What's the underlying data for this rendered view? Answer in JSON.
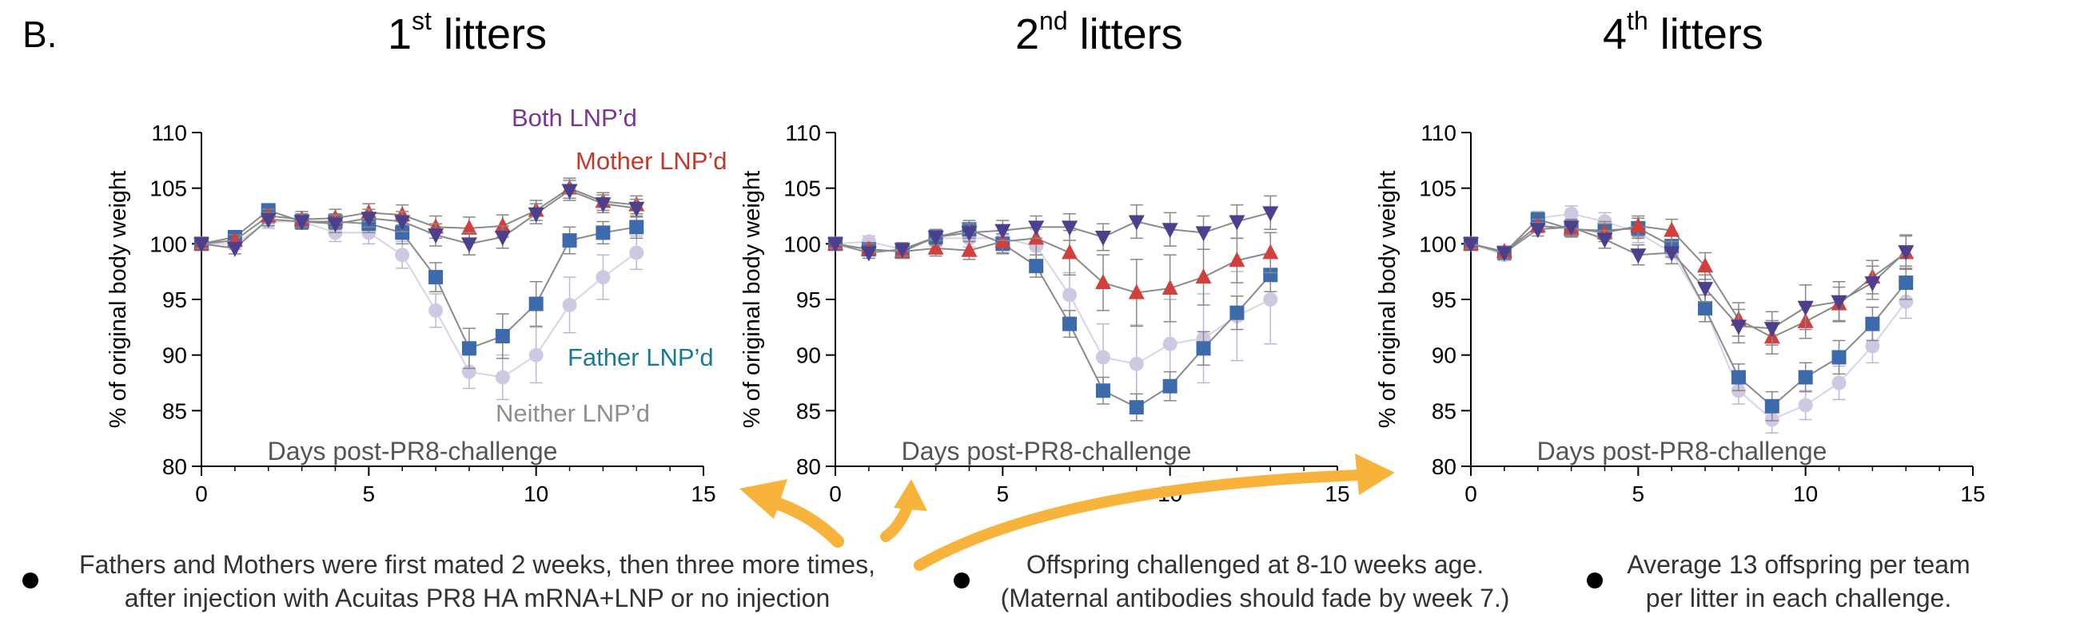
{
  "panel_label": "B.",
  "titles": [
    {
      "ord": "1",
      "sup": "st",
      "rest": " litters"
    },
    {
      "ord": "2",
      "sup": "nd",
      "rest": " litters"
    },
    {
      "ord": "4",
      "sup": "th",
      "rest": " litters"
    }
  ],
  "legend": {
    "both": "Both LNP’d",
    "mother": "Mother LNP’d",
    "father": "Father LNP’d",
    "neither": "Neither LNP’d"
  },
  "colors": {
    "both": "#4b3f8e",
    "mother": "#d0403c",
    "father": "#3d6aab",
    "neither": "#cfc8e3",
    "legend_both": "#7a3694",
    "legend_mother": "#c0392b",
    "legend_father": "#1a7a93",
    "legend_neither": "#8f8f8f",
    "arrow": "#f8b33c"
  },
  "chart_data": [
    {
      "type": "line",
      "title": "1st litters",
      "xlabel": "Days post-PR8-challenge",
      "ylabel": "% of original body weight",
      "xlim": [
        0,
        15
      ],
      "ylim": [
        80,
        110
      ],
      "xticks": [
        0,
        5,
        10,
        15
      ],
      "yticks": [
        80,
        85,
        90,
        95,
        100,
        105,
        110
      ],
      "x": [
        0,
        1,
        2,
        3,
        4,
        5,
        6,
        7,
        8,
        9,
        10,
        11,
        12,
        13
      ],
      "series": [
        {
          "key": "neither",
          "marker": "circle",
          "values": [
            100,
            100,
            102,
            102,
            101,
            101,
            99,
            94,
            88.5,
            88,
            90,
            94.5,
            97,
            99.2
          ],
          "err": [
            0.4,
            0.5,
            0.6,
            0.7,
            0.8,
            1,
            1.2,
            1.5,
            1.5,
            2,
            2.5,
            2.5,
            2,
            1.5
          ]
        },
        {
          "key": "father",
          "marker": "square",
          "values": [
            100,
            100.6,
            103,
            102,
            102,
            101.8,
            101,
            97,
            90.6,
            91.7,
            94.6,
            100.3,
            101,
            101.5
          ],
          "err": [
            0.4,
            0.5,
            0.6,
            0.6,
            0.7,
            0.8,
            1,
            1.3,
            1.8,
            2,
            2,
            1.2,
            1,
            1
          ]
        },
        {
          "key": "mother",
          "marker": "triangle-up",
          "values": [
            100,
            100.3,
            102.5,
            102.2,
            102.3,
            102.8,
            102.6,
            101.5,
            101.4,
            101.6,
            103,
            105,
            103.8,
            103.5
          ],
          "err": [
            0.4,
            0.5,
            0.6,
            0.7,
            0.8,
            0.8,
            0.9,
            1,
            1,
            1,
            0.9,
            0.9,
            0.8,
            0.8
          ]
        },
        {
          "key": "both",
          "marker": "triangle-down",
          "values": [
            100,
            99.6,
            102.2,
            102,
            101.8,
            102.3,
            102,
            100.8,
            100,
            100.6,
            102.7,
            104.8,
            103.6,
            103.2
          ],
          "err": [
            0.4,
            0.5,
            0.6,
            0.7,
            0.8,
            0.8,
            0.9,
            1,
            1,
            1,
            0.9,
            0.9,
            0.8,
            0.8
          ]
        }
      ]
    },
    {
      "type": "line",
      "title": "2nd litters",
      "xlabel": "Days post-PR8-challenge",
      "ylabel": "% of original body weight",
      "xlim": [
        0,
        15
      ],
      "ylim": [
        80,
        110
      ],
      "xticks": [
        0,
        5,
        10,
        15
      ],
      "yticks": [
        80,
        85,
        90,
        95,
        100,
        105,
        110
      ],
      "x": [
        0,
        1,
        2,
        3,
        4,
        5,
        6,
        7,
        8,
        9,
        10,
        11,
        12,
        13
      ],
      "series": [
        {
          "key": "neither",
          "marker": "circle",
          "values": [
            100,
            100.2,
            99.5,
            100.5,
            100.5,
            100.5,
            99.8,
            95.4,
            89.8,
            89.2,
            91,
            91.5,
            93.5,
            95
          ],
          "err": [
            0.4,
            0.5,
            0.6,
            0.7,
            0.8,
            1,
            1.5,
            2,
            3,
            3.5,
            4,
            4,
            4,
            4
          ]
        },
        {
          "key": "father",
          "marker": "square",
          "values": [
            100,
            99.5,
            99.3,
            100.6,
            101.3,
            100,
            98,
            92.8,
            86.8,
            85.3,
            87.2,
            90.6,
            93.8,
            97.2
          ],
          "err": [
            0.4,
            0.5,
            0.6,
            0.7,
            0.8,
            0.9,
            1,
            1.2,
            1.2,
            1.2,
            1.3,
            1.5,
            1.5,
            1.5
          ]
        },
        {
          "key": "mother",
          "marker": "triangle-up",
          "values": [
            100,
            99.5,
            99.3,
            99.6,
            99.4,
            100.2,
            100.5,
            99.2,
            96.5,
            95.6,
            96,
            97,
            98.5,
            99.2
          ],
          "err": [
            0.4,
            0.5,
            0.6,
            0.7,
            0.8,
            1,
            1.5,
            2,
            2.5,
            3,
            3,
            2.5,
            2,
            1.8
          ]
        },
        {
          "key": "both",
          "marker": "triangle-down",
          "values": [
            100,
            99.2,
            99.5,
            100.6,
            101,
            101.2,
            101.5,
            101.5,
            100.6,
            102,
            101.3,
            101,
            102,
            102.8
          ],
          "err": [
            0.4,
            0.5,
            0.6,
            0.7,
            0.8,
            0.9,
            1,
            1.2,
            1.2,
            1.5,
            1.5,
            1.5,
            1.5,
            1.5
          ]
        }
      ]
    },
    {
      "type": "line",
      "title": "4th litters",
      "xlabel": "Days post-PR8-challenge",
      "ylabel": "% of original body weight",
      "xlim": [
        0,
        15
      ],
      "ylim": [
        80,
        110
      ],
      "xticks": [
        0,
        5,
        10,
        15
      ],
      "yticks": [
        80,
        85,
        90,
        95,
        100,
        105,
        110
      ],
      "x": [
        0,
        1,
        2,
        3,
        4,
        5,
        6,
        7,
        8,
        9,
        10,
        11,
        12,
        13
      ],
      "series": [
        {
          "key": "neither",
          "marker": "circle",
          "values": [
            100,
            99,
            102.3,
            102.7,
            102,
            101,
            99.2,
            94.2,
            86.8,
            84.2,
            85.5,
            87.5,
            90.8,
            94.8
          ],
          "err": [
            0.4,
            0.5,
            0.6,
            0.7,
            0.8,
            0.9,
            1,
            1.2,
            1.2,
            1.2,
            1.3,
            1.5,
            1.5,
            1.5
          ]
        },
        {
          "key": "father",
          "marker": "square",
          "values": [
            100,
            99.2,
            102.2,
            101.3,
            101.2,
            101.4,
            99.8,
            94.2,
            88,
            85.4,
            88,
            89.8,
            92.8,
            96.5
          ],
          "err": [
            0.4,
            0.5,
            0.6,
            0.7,
            0.8,
            0.9,
            1,
            1.2,
            1.2,
            1.3,
            1.3,
            1.5,
            1.5,
            1.5
          ]
        },
        {
          "key": "mother",
          "marker": "triangle-up",
          "values": [
            100,
            99.3,
            101.6,
            101.4,
            101,
            101.6,
            101.2,
            98,
            93.2,
            91.6,
            93,
            94.6,
            97,
            99.2
          ],
          "err": [
            0.4,
            0.5,
            0.6,
            0.7,
            0.8,
            0.9,
            1,
            1.2,
            1.5,
            1.5,
            1.5,
            1.5,
            1.5,
            1.5
          ]
        },
        {
          "key": "both",
          "marker": "triangle-down",
          "values": [
            100,
            99.2,
            101.3,
            101.5,
            100.4,
            99,
            99.2,
            96,
            92.6,
            92.4,
            94.3,
            94.8,
            96.5,
            99.3
          ],
          "err": [
            0.4,
            0.5,
            0.6,
            0.7,
            0.8,
            0.9,
            1,
            1.2,
            1.5,
            1.5,
            2,
            1.8,
            1.5,
            1.5
          ]
        }
      ]
    }
  ],
  "notes": [
    {
      "lines": [
        "Fathers and Mothers were first mated 2 weeks, then three more times,",
        "after injection with Acuitas PR8 HA mRNA+LNP or no injection"
      ]
    },
    {
      "lines": [
        "Offspring challenged at 8-10 weeks age.",
        "(Maternal antibodies should fade by week 7.)"
      ]
    },
    {
      "lines": [
        "Average 13 offspring per team",
        "per litter in each challenge."
      ]
    }
  ]
}
